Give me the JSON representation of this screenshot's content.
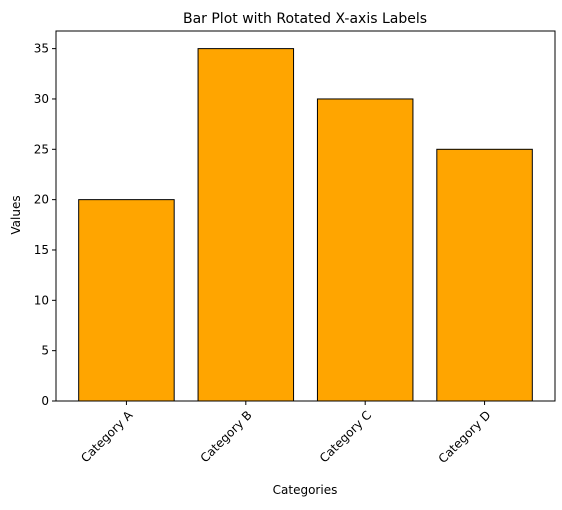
{
  "chart_data": {
    "type": "bar",
    "title": "Bar Plot with Rotated X-axis Labels",
    "x_label": "Categories",
    "y_label": "Values",
    "categories": [
      "Category A",
      "Category B",
      "Category C",
      "Category D"
    ],
    "values": [
      20,
      35,
      30,
      25
    ],
    "color": "#ffa500",
    "edgecolor": "#000000",
    "ylim": [
      0,
      36.75
    ],
    "yticks": [
      0,
      5,
      10,
      15,
      20,
      25,
      30,
      35
    ],
    "grid": false,
    "xtick_rotation": 45
  }
}
